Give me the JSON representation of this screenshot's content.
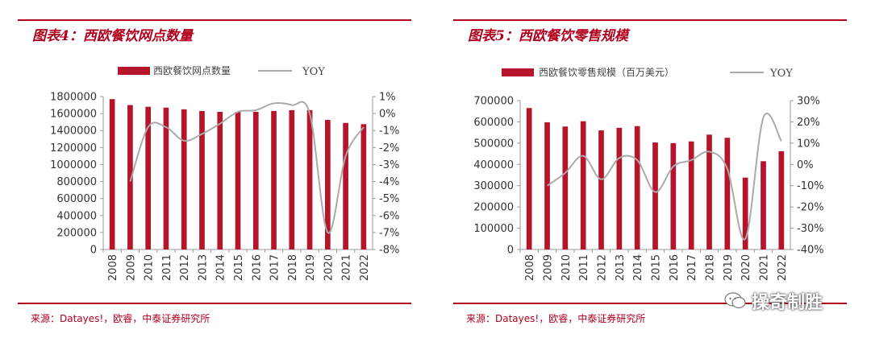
{
  "colors": {
    "accent": "#b0001e",
    "bar": "#b5152b",
    "line": "#aaaaaa"
  },
  "watermark": {
    "text": "操奇制胜",
    "icon": "wechat-icon"
  },
  "panels": [
    {
      "title": "图表4：西欧餐饮网点数量",
      "source": "来源：Datayes!，欧睿，中泰证券研究所"
    },
    {
      "title": "图表5：西欧餐饮零售规模",
      "source": "来源：Datayes!，欧睿，中泰证券研究所"
    }
  ],
  "chart_data": [
    {
      "type": "bar",
      "title": "图表4：西欧餐饮网点数量",
      "categories": [
        "2008",
        "2009",
        "2010",
        "2011",
        "2012",
        "2013",
        "2014",
        "2015",
        "2016",
        "2017",
        "2018",
        "2019",
        "2020",
        "2021",
        "2022"
      ],
      "series": [
        {
          "name": "西欧餐饮网点数量",
          "type": "bar",
          "axis": "left",
          "values": [
            1770000,
            1700000,
            1680000,
            1670000,
            1650000,
            1630000,
            1620000,
            1620000,
            1620000,
            1630000,
            1640000,
            1640000,
            1525000,
            1490000,
            1475000
          ]
        },
        {
          "name": "YOY",
          "type": "line",
          "axis": "right",
          "values": [
            null,
            -4.0,
            -0.8,
            -0.8,
            -1.6,
            -1.2,
            -0.6,
            0.1,
            0.2,
            0.6,
            0.5,
            0.0,
            -7.0,
            -2.5,
            -0.8
          ]
        }
      ],
      "ylim": [
        0,
        1800000
      ],
      "yticks": [
        "1800000",
        "1600000",
        "1400000",
        "1200000",
        "1000000",
        "800000",
        "600000",
        "400000",
        "200000",
        "0"
      ],
      "y2lim": [
        -8,
        1
      ],
      "y2ticks": [
        "1%",
        "0%",
        "-1%",
        "-2%",
        "-3%",
        "-4%",
        "-5%",
        "-6%",
        "-7%",
        "-8%"
      ],
      "legend": "top-center",
      "grid": false
    },
    {
      "type": "bar",
      "title": "图表5：西欧餐饮零售规模",
      "categories": [
        "2008",
        "2009",
        "2010",
        "2011",
        "2012",
        "2013",
        "2014",
        "2015",
        "2016",
        "2017",
        "2018",
        "2019",
        "2020",
        "2021",
        "2022"
      ],
      "series": [
        {
          "name": "西欧餐饮零售规模（百万美元）",
          "type": "bar",
          "axis": "left",
          "values": [
            665000,
            598000,
            578000,
            603000,
            560000,
            572000,
            580000,
            503000,
            500000,
            508000,
            540000,
            525000,
            338000,
            415000,
            462000
          ]
        },
        {
          "name": "YOY",
          "type": "line",
          "axis": "right",
          "values": [
            null,
            -10,
            -4,
            4,
            -7,
            3,
            2,
            -13,
            -1,
            2,
            6,
            -2,
            -35,
            22,
            11
          ]
        }
      ],
      "ylim": [
        0,
        700000
      ],
      "yticks": [
        "700000",
        "600000",
        "500000",
        "400000",
        "300000",
        "200000",
        "100000",
        "0"
      ],
      "y2lim": [
        -40,
        30
      ],
      "y2ticks": [
        "30%",
        "20%",
        "10%",
        "0%",
        "-10%",
        "-20%",
        "-30%",
        "-40%"
      ],
      "legend": "top-center",
      "grid": false
    }
  ]
}
